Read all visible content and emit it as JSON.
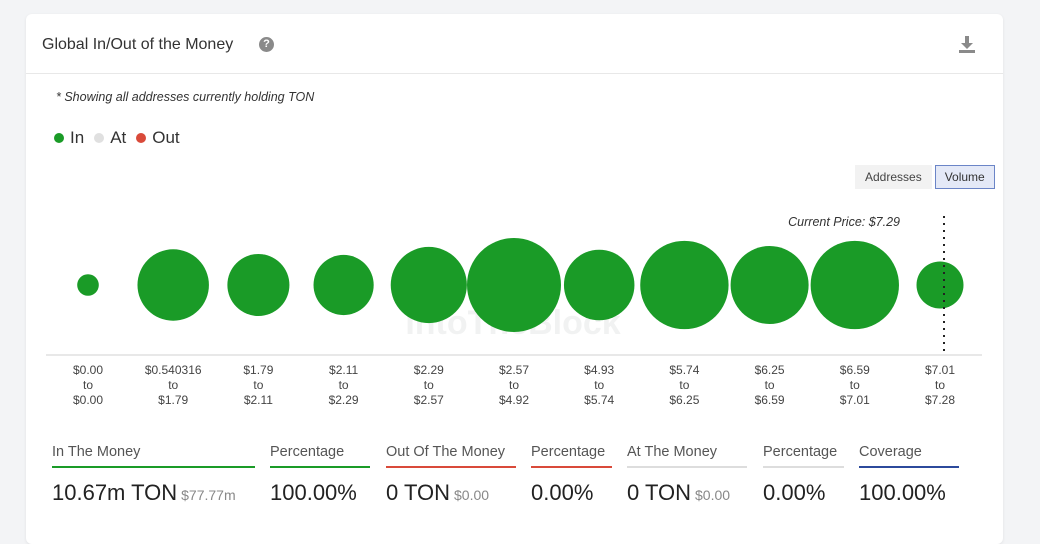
{
  "header": {
    "title": "Global In/Out of the Money",
    "help_icon": "?",
    "download_icon": "download-icon"
  },
  "note": "* Showing all addresses currently holding TON",
  "legend": [
    {
      "label": "In",
      "color": "#1a9b27"
    },
    {
      "label": "At",
      "color": "#e0e0e0"
    },
    {
      "label": "Out",
      "color": "#d94a3a"
    }
  ],
  "toggle": {
    "addresses_label": "Addresses",
    "volume_label": "Volume",
    "active": "Volume"
  },
  "watermark": "IntoTheBlock",
  "chart_data": {
    "type": "bubble",
    "title": "Global In/Out of the Money",
    "current_price_label": "Current Price: $7.29",
    "current_price": 7.29,
    "categories": [
      {
        "from": "$0.00",
        "to": "$0.00",
        "status": "In",
        "relative_size": 0.23
      },
      {
        "from": "$0.540316",
        "to": "$1.79",
        "status": "In",
        "relative_size": 0.76
      },
      {
        "from": "$1.79",
        "to": "$2.11",
        "status": "In",
        "relative_size": 0.66
      },
      {
        "from": "$2.11",
        "to": "$2.29",
        "status": "In",
        "relative_size": 0.64
      },
      {
        "from": "$2.29",
        "to": "$2.57",
        "status": "In",
        "relative_size": 0.81
      },
      {
        "from": "$2.57",
        "to": "$4.92",
        "status": "In",
        "relative_size": 1.0
      },
      {
        "from": "$4.93",
        "to": "$5.74",
        "status": "In",
        "relative_size": 0.75
      },
      {
        "from": "$5.74",
        "to": "$6.25",
        "status": "In",
        "relative_size": 0.94
      },
      {
        "from": "$6.25",
        "to": "$6.59",
        "status": "In",
        "relative_size": 0.83
      },
      {
        "from": "$6.59",
        "to": "$7.01",
        "status": "In",
        "relative_size": 0.94
      },
      {
        "from": "$7.01",
        "to": "$7.28",
        "status": "In",
        "relative_size": 0.5
      }
    ],
    "to_word": "to"
  },
  "stats": [
    {
      "label": "In The Money",
      "value": "10.67m TON",
      "sub": "$77.77m",
      "color": "#1a9b27"
    },
    {
      "label": "Percentage",
      "value": "100.00%",
      "sub": "",
      "color": "#1a9b27"
    },
    {
      "label": "Out Of The Money",
      "value": "0 TON",
      "sub": "$0.00",
      "color": "#d94a3a"
    },
    {
      "label": "Percentage",
      "value": "0.00%",
      "sub": "",
      "color": "#d94a3a"
    },
    {
      "label": "At The Money",
      "value": "0 TON",
      "sub": "$0.00",
      "color": "#dddddd"
    },
    {
      "label": "Percentage",
      "value": "0.00%",
      "sub": "",
      "color": "#dddddd"
    },
    {
      "label": "Coverage",
      "value": "100.00%",
      "sub": "",
      "color": "#2c4a9c"
    }
  ]
}
